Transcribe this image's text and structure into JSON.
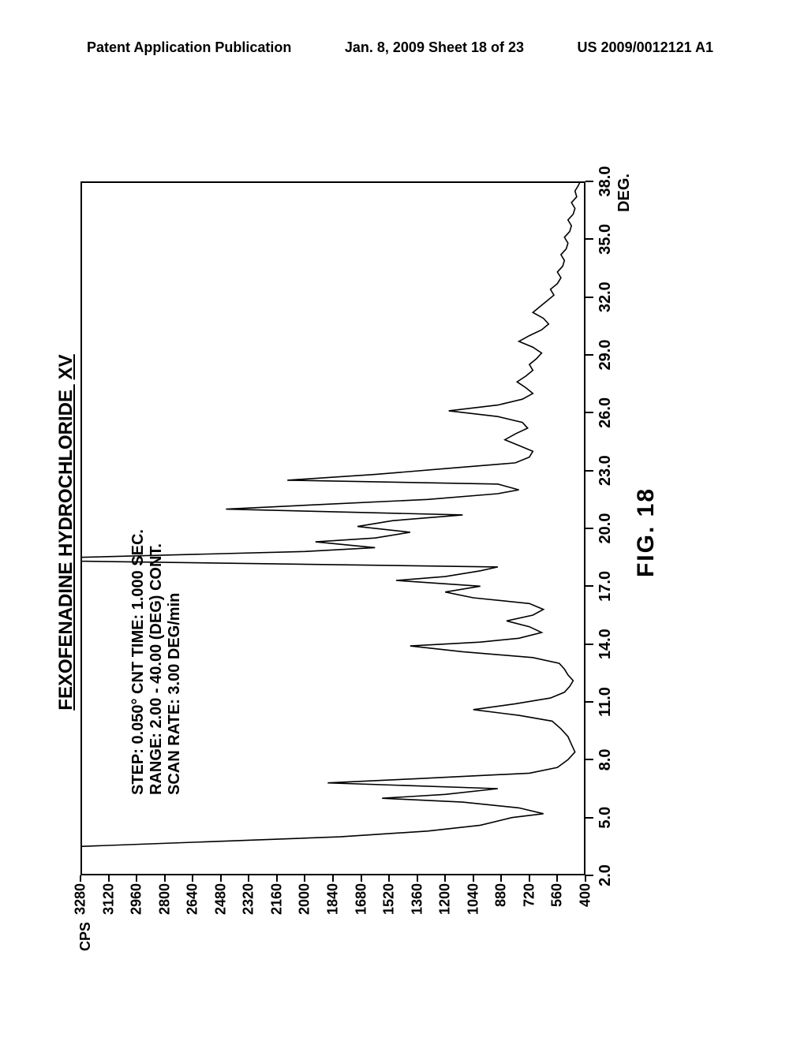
{
  "header": {
    "left": "Patent Application Publication",
    "center": "Jan. 8, 2009  Sheet 18 of 23",
    "right": "US 2009/0012121 A1"
  },
  "chart": {
    "type": "line",
    "title_main": "FEXOFENADINE HYDROCHLORIDE",
    "title_roman": "XV",
    "meta_lines": [
      "STEP: 0.050° CNT TIME: 1.000 SEC.",
      "RANGE: 2.00 - 40.00 (DEG) CONT.",
      "SCAN RATE: 3.00 DEG/min"
    ],
    "y_axis": {
      "label": "CPS",
      "min": 400,
      "max": 3280,
      "ticks": [
        3280,
        3120,
        2960,
        2800,
        2640,
        2480,
        2320,
        2160,
        2000,
        1840,
        1680,
        1520,
        1360,
        1200,
        1040,
        880,
        720,
        560,
        400
      ]
    },
    "x_axis": {
      "min": 2.0,
      "max": 38.0,
      "ticks": [
        2.0,
        5.0,
        8.0,
        11.0,
        14.0,
        17.0,
        20.0,
        23.0,
        26.0,
        29.0,
        32.0,
        35.0,
        38.0
      ],
      "tick_labels": [
        "2.0",
        "5.0",
        "8.0",
        "11.0",
        "14.0",
        "17.0",
        "20.0",
        "23.0",
        "26.0",
        "29.0",
        "32.0",
        "35.0",
        "38.0"
      ],
      "unit": "DEG."
    },
    "line_color": "#000000",
    "line_width": 1.6,
    "background": "#ffffff",
    "data": [
      [
        2.0,
        3280
      ],
      [
        3.0,
        3280
      ],
      [
        3.5,
        3280
      ],
      [
        4.0,
        1800
      ],
      [
        4.3,
        1300
      ],
      [
        4.6,
        1000
      ],
      [
        5.0,
        820
      ],
      [
        5.2,
        640
      ],
      [
        5.5,
        780
      ],
      [
        5.8,
        1100
      ],
      [
        6.0,
        1560
      ],
      [
        6.2,
        1200
      ],
      [
        6.5,
        900
      ],
      [
        6.8,
        1870
      ],
      [
        7.0,
        1400
      ],
      [
        7.3,
        720
      ],
      [
        7.6,
        560
      ],
      [
        8.0,
        500
      ],
      [
        8.4,
        460
      ],
      [
        8.8,
        480
      ],
      [
        9.2,
        500
      ],
      [
        9.6,
        540
      ],
      [
        10.0,
        590
      ],
      [
        10.3,
        780
      ],
      [
        10.6,
        1040
      ],
      [
        10.9,
        800
      ],
      [
        11.2,
        600
      ],
      [
        11.5,
        520
      ],
      [
        11.8,
        490
      ],
      [
        12.1,
        470
      ],
      [
        12.4,
        500
      ],
      [
        12.7,
        520
      ],
      [
        13.0,
        550
      ],
      [
        13.3,
        700
      ],
      [
        13.6,
        1100
      ],
      [
        13.9,
        1400
      ],
      [
        14.1,
        1000
      ],
      [
        14.3,
        780
      ],
      [
        14.6,
        650
      ],
      [
        14.9,
        720
      ],
      [
        15.2,
        850
      ],
      [
        15.5,
        700
      ],
      [
        15.8,
        640
      ],
      [
        16.1,
        720
      ],
      [
        16.4,
        1040
      ],
      [
        16.7,
        1200
      ],
      [
        17.0,
        1000
      ],
      [
        17.3,
        1480
      ],
      [
        17.5,
        1200
      ],
      [
        17.8,
        1000
      ],
      [
        18.0,
        900
      ],
      [
        18.3,
        3280
      ],
      [
        18.5,
        3280
      ],
      [
        18.8,
        2000
      ],
      [
        19.0,
        1600
      ],
      [
        19.3,
        1940
      ],
      [
        19.5,
        1600
      ],
      [
        19.8,
        1400
      ],
      [
        20.1,
        1700
      ],
      [
        20.4,
        1500
      ],
      [
        20.7,
        1100
      ],
      [
        21.0,
        2450
      ],
      [
        21.2,
        2000
      ],
      [
        21.5,
        1300
      ],
      [
        21.8,
        900
      ],
      [
        22.0,
        780
      ],
      [
        22.3,
        900
      ],
      [
        22.5,
        2100
      ],
      [
        22.8,
        1600
      ],
      [
        23.1,
        1200
      ],
      [
        23.4,
        800
      ],
      [
        23.7,
        720
      ],
      [
        24.0,
        700
      ],
      [
        24.3,
        780
      ],
      [
        24.6,
        860
      ],
      [
        24.9,
        800
      ],
      [
        25.2,
        730
      ],
      [
        25.5,
        760
      ],
      [
        25.8,
        900
      ],
      [
        26.1,
        1180
      ],
      [
        26.4,
        900
      ],
      [
        26.7,
        760
      ],
      [
        27.0,
        700
      ],
      [
        27.3,
        740
      ],
      [
        27.6,
        790
      ],
      [
        27.9,
        740
      ],
      [
        28.2,
        700
      ],
      [
        28.5,
        720
      ],
      [
        28.8,
        680
      ],
      [
        29.1,
        650
      ],
      [
        29.4,
        700
      ],
      [
        29.7,
        780
      ],
      [
        30.0,
        720
      ],
      [
        30.3,
        650
      ],
      [
        30.6,
        610
      ],
      [
        30.9,
        640
      ],
      [
        31.2,
        700
      ],
      [
        31.5,
        660
      ],
      [
        31.8,
        620
      ],
      [
        32.1,
        580
      ],
      [
        32.4,
        600
      ],
      [
        32.7,
        560
      ],
      [
        33.0,
        540
      ],
      [
        33.3,
        560
      ],
      [
        33.6,
        530
      ],
      [
        33.9,
        520
      ],
      [
        34.2,
        540
      ],
      [
        34.5,
        510
      ],
      [
        34.8,
        500
      ],
      [
        35.1,
        520
      ],
      [
        35.4,
        490
      ],
      [
        35.7,
        480
      ],
      [
        36.0,
        500
      ],
      [
        36.3,
        470
      ],
      [
        36.6,
        460
      ],
      [
        36.9,
        480
      ],
      [
        37.2,
        450
      ],
      [
        37.5,
        460
      ],
      [
        37.8,
        440
      ],
      [
        38.0,
        430
      ]
    ]
  },
  "caption": "FIG. 18",
  "colors": {
    "text": "#000000",
    "bg": "#ffffff"
  },
  "fonts": {
    "header_pt": 18,
    "title_pt": 24,
    "meta_pt": 20,
    "axis_pt": 18,
    "caption_pt": 30
  }
}
